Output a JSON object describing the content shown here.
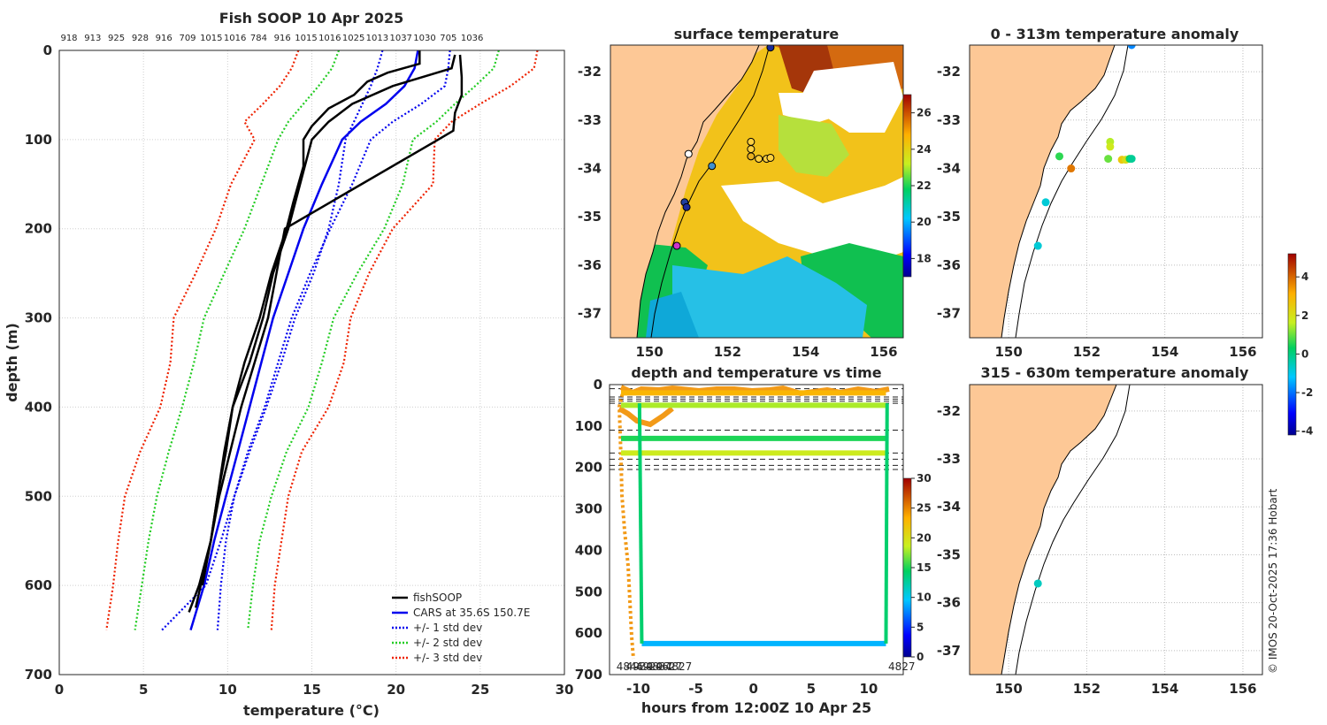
{
  "copyright": "© IMOS 20-Oct-2025 17:36 Hobart",
  "chart_data": [
    {
      "type": "line",
      "title": "Fish SOOP 10 Apr 2025",
      "xlabel": "temperature (°C)",
      "ylabel": "depth (m)",
      "xlim": [
        0,
        30
      ],
      "ylim": [
        700,
        0
      ],
      "xticks": [
        "0",
        "5",
        "10",
        "15",
        "20",
        "25",
        "30"
      ],
      "yticks": [
        "0",
        "100",
        "200",
        "300",
        "400",
        "500",
        "600",
        "700"
      ],
      "top_labels": [
        "918",
        "913",
        "925",
        "928",
        "916",
        "709",
        "1015",
        "1016",
        "784",
        "916",
        "1015",
        "1016",
        "1025",
        "1013",
        "1037",
        "1030",
        "705",
        "1036"
      ],
      "legend": [
        "fishSOOP",
        "CARS at 35.6S 150.7E",
        "+/- 1 std dev",
        "+/- 2 std dev",
        "+/- 3 std dev"
      ],
      "depth": [
        0,
        20,
        40,
        60,
        80,
        100,
        150,
        200,
        250,
        300,
        350,
        400,
        450,
        500,
        550,
        600,
        650
      ],
      "series": [
        {
          "name": "CARS at 35.6S 150.7E",
          "color": "#0000ee",
          "values": [
            21.3,
            21.1,
            20.5,
            19.4,
            17.9,
            16.8,
            15.6,
            14.5,
            13.6,
            12.7,
            12.0,
            11.3,
            10.6,
            9.9,
            9.2,
            8.6,
            7.8
          ]
        },
        {
          "name": "+1 std",
          "color": "#0000ee",
          "values": [
            19.2,
            18.9,
            18.5,
            18.0,
            17.5,
            17.0,
            16.6,
            16.0,
            15.1,
            14.0,
            13.2,
            12.3,
            11.3,
            10.4,
            9.9,
            9.6,
            9.4
          ]
        },
        {
          "name": "-1 std",
          "color": "#0000ee",
          "values": [
            23.2,
            23.1,
            22.9,
            21.5,
            19.8,
            18.5,
            17.4,
            16.1,
            14.9,
            13.8,
            13.0,
            12.2,
            11.2,
            10.4,
            9.6,
            8.7,
            6.1
          ]
        },
        {
          "name": "+2 std",
          "color": "#22cc22",
          "values": [
            16.6,
            16.2,
            15.4,
            14.5,
            13.6,
            13.0,
            12.0,
            11.0,
            9.8,
            8.6,
            8.0,
            7.3,
            6.5,
            5.8,
            5.3,
            4.9,
            4.5
          ]
        },
        {
          "name": "-2 std",
          "color": "#22cc22",
          "values": [
            26.1,
            25.8,
            24.7,
            23.5,
            22.4,
            21.0,
            20.4,
            19.3,
            17.7,
            16.3,
            15.6,
            14.8,
            13.5,
            12.6,
            11.9,
            11.5,
            11.2
          ]
        },
        {
          "name": "+3 std",
          "color": "#ee2200",
          "values": [
            14.2,
            13.8,
            13.1,
            12.1,
            11.0,
            11.6,
            10.2,
            9.3,
            8.1,
            6.8,
            6.6,
            6.0,
            4.8,
            3.9,
            3.5,
            3.2,
            2.8
          ]
        },
        {
          "name": "-3 std",
          "color": "#ee2200",
          "values": [
            28.4,
            28.2,
            26.8,
            25.0,
            23.3,
            22.3,
            22.2,
            19.8,
            18.4,
            17.3,
            16.9,
            16.0,
            14.4,
            13.6,
            13.2,
            12.8,
            12.6
          ]
        }
      ],
      "fishsoop": [
        {
          "depth": [
            0,
            15,
            25,
            35,
            50,
            65,
            85,
            100,
            130,
            170,
            200,
            250,
            300,
            350,
            400,
            450,
            500,
            550,
            600,
            630
          ],
          "values": [
            21.4,
            21.4,
            19.5,
            18.3,
            17.5,
            16.0,
            15.0,
            14.5,
            14.5,
            13.9,
            13.5,
            12.6,
            11.9,
            11.0,
            10.3,
            9.8,
            9.4,
            9.0,
            8.3,
            7.7
          ]
        },
        {
          "depth": [
            5,
            20,
            40,
            60,
            80,
            100,
            150,
            200,
            250,
            300,
            350,
            400,
            450,
            500,
            550,
            600,
            625
          ],
          "values": [
            23.5,
            23.3,
            19.8,
            17.4,
            16.0,
            15.0,
            14.3,
            13.6,
            12.7,
            12.1,
            11.3,
            10.3,
            9.9,
            9.4,
            9.0,
            8.4,
            8.1
          ]
        },
        {
          "depth": [
            5,
            30,
            50,
            70,
            90,
            100,
            200,
            300,
            400,
            500,
            600
          ],
          "values": [
            23.8,
            23.9,
            23.9,
            23.5,
            23.4,
            22.5,
            13.4,
            12.4,
            10.8,
            9.5,
            8.5
          ]
        }
      ]
    },
    {
      "type": "heatmap",
      "title": "surface temperature",
      "xticks": [
        "150",
        "152",
        "154",
        "156"
      ],
      "yticks": [
        "-32",
        "-33",
        "-34",
        "-35",
        "-36",
        "-37"
      ],
      "colorbar": {
        "min": 17,
        "max": 27,
        "ticks": [
          "18",
          "20",
          "22",
          "24",
          "26"
        ]
      },
      "stations": [
        {
          "lon": 153.1,
          "lat": -31.5,
          "color": "#1a2a9a"
        },
        {
          "lon": 151.0,
          "lat": -33.7,
          "color": "#ffffff"
        },
        {
          "lon": 151.6,
          "lat": -33.95,
          "color": "#4090d0"
        },
        {
          "lon": 152.6,
          "lat": -33.45,
          "color": "#ffd040"
        },
        {
          "lon": 152.6,
          "lat": -33.6,
          "color": "#ffd040"
        },
        {
          "lon": 152.6,
          "lat": -33.75,
          "color": "#e8b020"
        },
        {
          "lon": 152.8,
          "lat": -33.8,
          "color": "#ffd040"
        },
        {
          "lon": 153.0,
          "lat": -33.8,
          "color": "#ffd040"
        },
        {
          "lon": 153.1,
          "lat": -33.78,
          "color": "#ffd040"
        },
        {
          "lon": 150.9,
          "lat": -34.7,
          "color": "#2040a0"
        },
        {
          "lon": 150.95,
          "lat": -34.8,
          "color": "#1a2a9a"
        },
        {
          "lon": 150.7,
          "lat": -35.6,
          "color": "#cc33cc"
        }
      ]
    },
    {
      "type": "scatter",
      "title": "0 - 313m temperature anomaly",
      "xticks": [
        "150",
        "152",
        "154",
        "156"
      ],
      "yticks": [
        "-32",
        "-33",
        "-34",
        "-35",
        "-36",
        "-37"
      ],
      "points": [
        {
          "lon": 153.15,
          "lat": -31.45,
          "anomaly": -1.8
        },
        {
          "lon": 151.3,
          "lat": -33.75,
          "anomaly": 0.6
        },
        {
          "lon": 151.6,
          "lat": -34.0,
          "anomaly": 3.8
        },
        {
          "lon": 152.6,
          "lat": -33.45,
          "anomaly": 1.5
        },
        {
          "lon": 152.6,
          "lat": -33.55,
          "anomaly": 1.8
        },
        {
          "lon": 152.55,
          "lat": -33.8,
          "anomaly": 1.0
        },
        {
          "lon": 152.9,
          "lat": -33.82,
          "anomaly": 2.6
        },
        {
          "lon": 153.0,
          "lat": -33.82,
          "anomaly": 2.1
        },
        {
          "lon": 153.1,
          "lat": -33.8,
          "anomaly": 0.4
        },
        {
          "lon": 153.15,
          "lat": -33.8,
          "anomaly": -0.2
        },
        {
          "lon": 150.95,
          "lat": -34.7,
          "anomaly": -0.8
        },
        {
          "lon": 150.75,
          "lat": -35.6,
          "anomaly": -0.8
        }
      ]
    },
    {
      "type": "scatter",
      "title": "315 - 630m temperature anomaly",
      "xticks": [
        "150",
        "152",
        "154",
        "156"
      ],
      "yticks": [
        "-32",
        "-33",
        "-34",
        "-35",
        "-36",
        "-37"
      ],
      "points": [
        {
          "lon": 150.75,
          "lat": -35.6,
          "anomaly": -0.6
        }
      ],
      "colorbar": {
        "min": -4.2,
        "max": 5.2,
        "ticks": [
          "4",
          "2",
          "0",
          "-2",
          "-4"
        ]
      }
    },
    {
      "type": "scatter",
      "title": "depth and temperature vs time",
      "xlabel": "hours from 12:00Z 10 Apr 25",
      "xlim": [
        -12.5,
        13
      ],
      "ylim": [
        700,
        0
      ],
      "xticks": [
        "-10",
        "-5",
        "0",
        "5",
        "10"
      ],
      "yticks": [
        "0",
        "100",
        "200",
        "300",
        "400",
        "500",
        "600",
        "700"
      ],
      "colorbar": {
        "min": 0,
        "max": 30,
        "ticks": [
          "30",
          "25",
          "20",
          "15",
          "10",
          "5",
          "0"
        ]
      },
      "dashed_depths": [
        10,
        30,
        35,
        40,
        45,
        110,
        165,
        180,
        195,
        205
      ],
      "bottom_labels": [
        "4846",
        "4939",
        "4929",
        "4837",
        "4627",
        "4827"
      ],
      "right_label": "4827",
      "tracks": [
        {
          "hours": [
            -11.5,
            11.5
          ],
          "depth": [
            20,
            20
          ],
          "temp": 23
        },
        {
          "hours": [
            -11.5,
            11.5
          ],
          "depth": [
            50,
            50
          ],
          "temp": 18
        },
        {
          "hours": [
            -11.5,
            11.5
          ],
          "depth": [
            130,
            130
          ],
          "temp": 15
        },
        {
          "hours": [
            -11.5,
            11.5
          ],
          "depth": [
            165,
            165
          ],
          "temp": 19
        },
        {
          "hours": [
            -9.7,
            11.5
          ],
          "depth": [
            625,
            625
          ],
          "temp": 9
        }
      ]
    }
  ]
}
